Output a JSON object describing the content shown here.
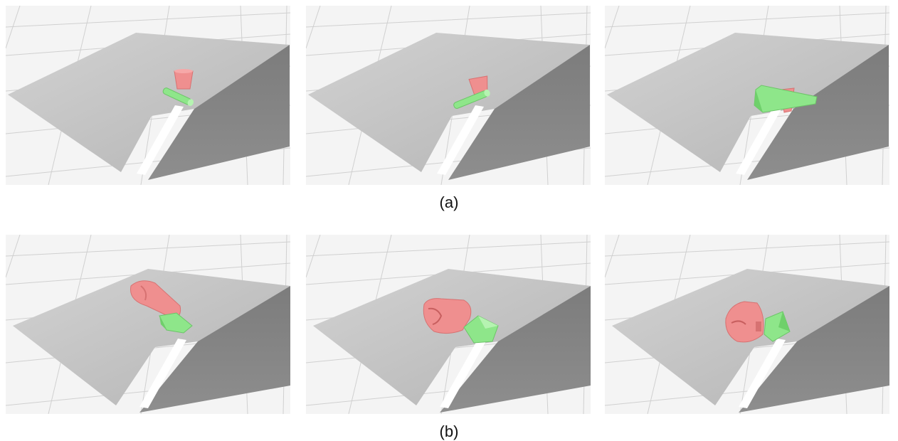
{
  "figure": {
    "captions": {
      "a": "(a)",
      "b": "(b)"
    },
    "colors": {
      "floor": "#f4f4f4",
      "grid": "#cfcfcf",
      "ramp_top": "#bdbdbd",
      "ramp_side": "#858585",
      "object_red": "#ef8f8f",
      "object_green": "#8ee68a"
    },
    "rows": [
      {
        "id": "a",
        "panels": [
          {
            "id": "a1",
            "scene": "ramp-with-red-cup-and-green-cylinder"
          },
          {
            "id": "a2",
            "scene": "ramp-with-red-cup-and-green-cylinder"
          },
          {
            "id": "a3",
            "scene": "ramp-with-green-cone-and-red-cup"
          }
        ]
      },
      {
        "id": "b",
        "panels": [
          {
            "id": "b1",
            "scene": "ramp-with-red-mug-and-green-block"
          },
          {
            "id": "b2",
            "scene": "ramp-with-red-mug-and-green-block"
          },
          {
            "id": "b3",
            "scene": "ramp-with-red-mug-and-green-block"
          }
        ]
      }
    ]
  }
}
